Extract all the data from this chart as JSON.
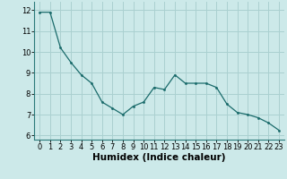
{
  "x": [
    0,
    1,
    2,
    3,
    4,
    5,
    6,
    7,
    8,
    9,
    10,
    11,
    12,
    13,
    14,
    15,
    16,
    17,
    18,
    19,
    20,
    21,
    22,
    23
  ],
  "y": [
    11.9,
    11.9,
    10.2,
    9.5,
    8.9,
    8.5,
    7.6,
    7.3,
    7.0,
    7.4,
    7.6,
    8.3,
    8.2,
    8.9,
    8.5,
    8.5,
    8.5,
    8.3,
    7.5,
    7.1,
    7.0,
    6.85,
    6.6,
    6.25
  ],
  "xlabel": "Humidex (Indice chaleur)",
  "xlim": [
    -0.5,
    23.5
  ],
  "ylim": [
    5.8,
    12.4
  ],
  "yticks": [
    6,
    7,
    8,
    9,
    10,
    11,
    12
  ],
  "xticks": [
    0,
    1,
    2,
    3,
    4,
    5,
    6,
    7,
    8,
    9,
    10,
    11,
    12,
    13,
    14,
    15,
    16,
    17,
    18,
    19,
    20,
    21,
    22,
    23
  ],
  "bg_color": "#cce9e9",
  "grid_color": "#aad0d0",
  "line_color": "#1a6b6b",
  "marker_color": "#1a6b6b",
  "tick_fontsize": 6.0,
  "xlabel_fontsize": 7.5
}
